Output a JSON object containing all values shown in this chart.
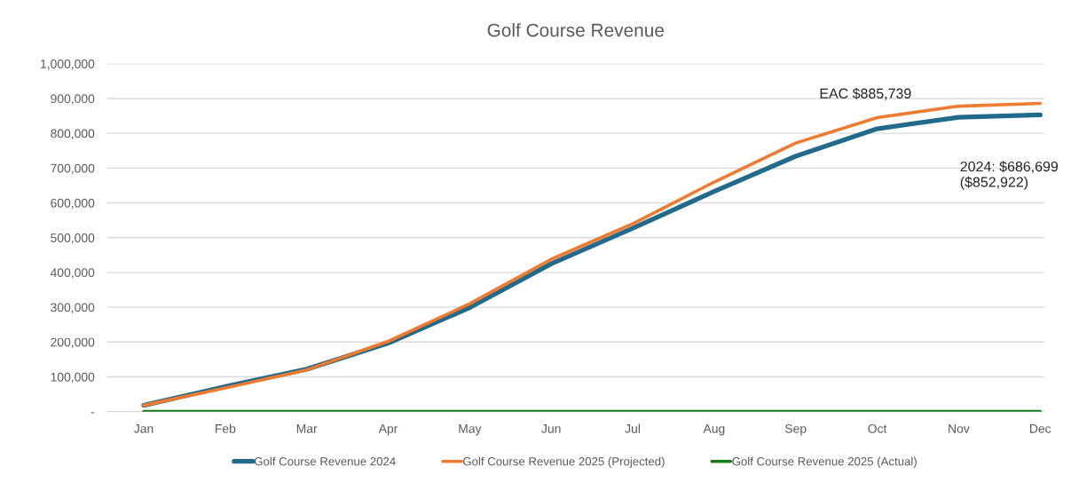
{
  "chart_data": {
    "type": "line",
    "title": "Golf Course Revenue",
    "categories": [
      "Jan",
      "Feb",
      "Mar",
      "Apr",
      "May",
      "Jun",
      "Jul",
      "Aug",
      "Sep",
      "Oct",
      "Nov",
      "Dec"
    ],
    "series": [
      {
        "name": "Golf Course Revenue 2024",
        "color": "#216a8c",
        "values": [
          18000,
          72000,
          122000,
          197000,
          299000,
          425000,
          527000,
          633000,
          734000,
          813000,
          846000,
          853000
        ]
      },
      {
        "name": "Golf Course Revenue 2025 (Projected)",
        "color": "#ee7b30",
        "values": [
          18000,
          68000,
          120000,
          202000,
          310000,
          438000,
          540000,
          660000,
          772000,
          845000,
          878000,
          886000
        ]
      },
      {
        "name": "Golf Course Revenue 2025 (Actual)",
        "color": "#1b7a1b",
        "values": [
          0,
          0,
          0,
          0,
          0,
          0,
          0,
          0,
          0,
          0,
          0,
          0
        ]
      }
    ],
    "ylim": [
      0,
      1000000
    ],
    "yticks": [
      {
        "value": 0,
        "label": "-"
      },
      {
        "value": 100000,
        "label": "100,000"
      },
      {
        "value": 200000,
        "label": "200,000"
      },
      {
        "value": 300000,
        "label": "300,000"
      },
      {
        "value": 400000,
        "label": "400,000"
      },
      {
        "value": 500000,
        "label": "500,000"
      },
      {
        "value": 600000,
        "label": "600,000"
      },
      {
        "value": 700000,
        "label": "700,000"
      },
      {
        "value": 800000,
        "label": "800,000"
      },
      {
        "value": 900000,
        "label": "900,000"
      },
      {
        "value": 1000000,
        "label": "1,000,000"
      }
    ],
    "grid": "y",
    "legend": "bottom",
    "marker": "none",
    "line_style": "solid",
    "annotations": [
      "EAC $885,739",
      "2024: $686,699\n($852,922)"
    ]
  }
}
